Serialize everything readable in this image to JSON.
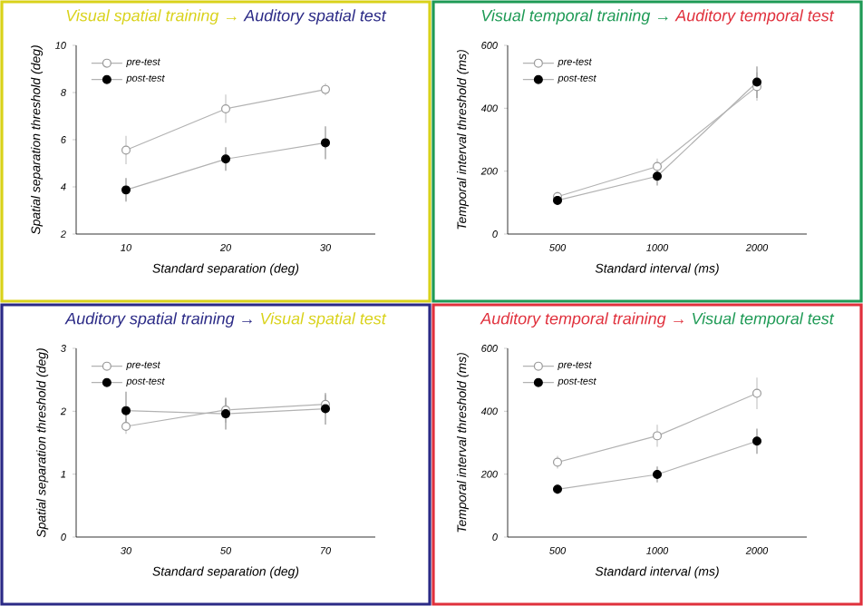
{
  "chart_data": [
    {
      "type": "line",
      "title": "Visual spatial training →",
      "subtitle": "Auditory spatial test",
      "xlabel": "Standard separation (deg)",
      "ylabel": "Spatial separation threshold (deg)",
      "categories": [
        "10",
        "20",
        "30"
      ],
      "ylim": [
        2,
        10
      ],
      "yticks": [
        2,
        4,
        6,
        8,
        10
      ],
      "legend": "top left",
      "marker": "circle",
      "series": [
        {
          "name": "pre-test",
          "color": "#9a9a9a",
          "values": [
            5.56,
            7.31,
            8.13
          ],
          "errors": [
            0.6,
            0.6,
            0.25
          ]
        },
        {
          "name": "post-test",
          "color": "#000000",
          "values": [
            3.87,
            5.18,
            5.87
          ],
          "errors": [
            0.5,
            0.5,
            0.7
          ]
        }
      ]
    },
    {
      "type": "line",
      "title": "Visual temporal training →",
      "subtitle": "Auditory temporal test",
      "xlabel": "Standard interval (ms)",
      "ylabel": "Temporal interval threshold (ms)",
      "categories": [
        "500",
        "1000",
        "2000"
      ],
      "ylim": [
        0,
        600
      ],
      "yticks": [
        0,
        200,
        400,
        600
      ],
      "legend": "top left",
      "marker": "circle",
      "series": [
        {
          "name": "pre-test",
          "color": "#9a9a9a",
          "values": [
            119,
            215,
            469
          ],
          "errors": [
            15,
            25,
            45
          ]
        },
        {
          "name": "post-test",
          "color": "#000000",
          "values": [
            107,
            184,
            483
          ],
          "errors": [
            null,
            30,
            50
          ]
        }
      ]
    },
    {
      "type": "line",
      "title": "Auditory spatial training →",
      "subtitle": "Visual spatial test",
      "xlabel": "Standard separation (deg)",
      "ylabel": "Spatial separation threshold (deg)",
      "categories": [
        "30",
        "50",
        "70"
      ],
      "ylim": [
        0,
        3
      ],
      "yticks": [
        0,
        1,
        2,
        3
      ],
      "legend": "top left",
      "marker": "circle",
      "series": [
        {
          "name": "pre-test",
          "color": "#9a9a9a",
          "values": [
            1.76,
            2.02,
            2.11
          ],
          "errors": [
            0.12,
            0.2,
            0.15
          ]
        },
        {
          "name": "post-test",
          "color": "#000000",
          "values": [
            2.01,
            1.96,
            2.04
          ],
          "errors": [
            0.3,
            0.25,
            0.25
          ]
        }
      ]
    },
    {
      "type": "line",
      "title": "Auditory temporal training →",
      "subtitle": "Visual temporal test",
      "xlabel": "Standard interval (ms)",
      "ylabel": "Temporal interval threshold (ms)",
      "categories": [
        "500",
        "1000",
        "2000"
      ],
      "ylim": [
        0,
        600
      ],
      "yticks": [
        0,
        200,
        400,
        600
      ],
      "legend": "top left",
      "marker": "circle",
      "series": [
        {
          "name": "pre-test",
          "color": "#9a9a9a",
          "values": [
            238,
            322,
            457
          ],
          "errors": [
            20,
            35,
            50
          ]
        },
        {
          "name": "post-test",
          "color": "#000000",
          "values": [
            152,
            199,
            305
          ],
          "errors": [
            15,
            25,
            40
          ]
        }
      ]
    }
  ]
}
